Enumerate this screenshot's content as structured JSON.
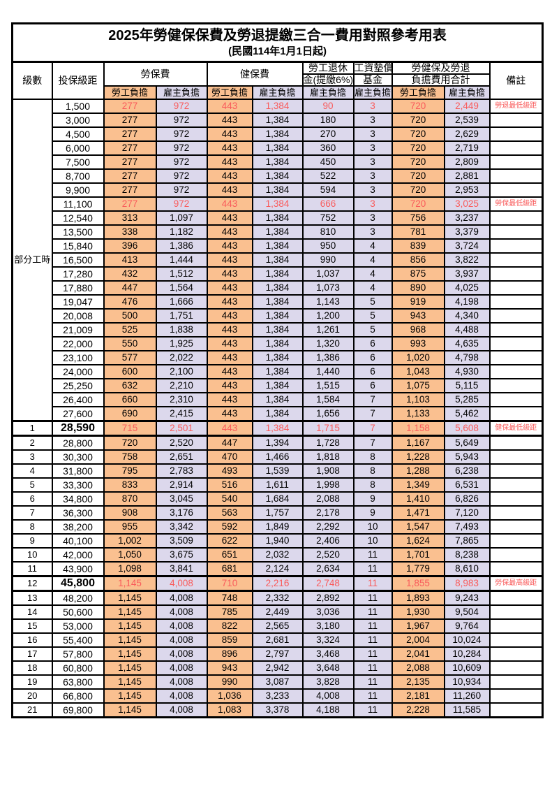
{
  "title": "2025年勞健保保費及勞退提繳三合一費用對照參考用表",
  "subtitle": "(民國114年1月1日起)",
  "colors": {
    "employee_bg": "#FAC090",
    "employer_bg": "#DCD8EC",
    "highlight_text": "#F95B5B"
  },
  "header": {
    "level": "級數",
    "bracket": "投保級距",
    "labor_insurance": "勞保費",
    "health_insurance": "健保費",
    "pension_top": "勞工退休",
    "pension_bottom": "金(提繳6%)",
    "wage_fund_top": "工資墊償",
    "wage_fund_bottom": "基金",
    "total_top": "勞健保及勞退",
    "total_bottom": "負擔費用合計",
    "remark": "備註",
    "employee_burden": "勞工負擔",
    "employer_burden": "雇主負擔"
  },
  "part_time_label": "部分工時",
  "part_time_rowspan": 23,
  "rows": [
    {
      "lv": "",
      "bracket": "1,500",
      "v": [
        "277",
        "972",
        "443",
        "1,384",
        "90",
        "3",
        "720",
        "2,449"
      ],
      "remark": "勞退最低級距",
      "hl": true,
      "thick": false
    },
    {
      "lv": "",
      "bracket": "3,000",
      "v": [
        "277",
        "972",
        "443",
        "1,384",
        "180",
        "3",
        "720",
        "2,539"
      ],
      "remark": "",
      "hl": false,
      "thick": false
    },
    {
      "lv": "",
      "bracket": "4,500",
      "v": [
        "277",
        "972",
        "443",
        "1,384",
        "270",
        "3",
        "720",
        "2,629"
      ],
      "remark": "",
      "hl": false,
      "thick": false
    },
    {
      "lv": "",
      "bracket": "6,000",
      "v": [
        "277",
        "972",
        "443",
        "1,384",
        "360",
        "3",
        "720",
        "2,719"
      ],
      "remark": "",
      "hl": false,
      "thick": false
    },
    {
      "lv": "",
      "bracket": "7,500",
      "v": [
        "277",
        "972",
        "443",
        "1,384",
        "450",
        "3",
        "720",
        "2,809"
      ],
      "remark": "",
      "hl": false,
      "thick": false
    },
    {
      "lv": "",
      "bracket": "8,700",
      "v": [
        "277",
        "972",
        "443",
        "1,384",
        "522",
        "3",
        "720",
        "2,881"
      ],
      "remark": "",
      "hl": false,
      "thick": false
    },
    {
      "lv": "",
      "bracket": "9,900",
      "v": [
        "277",
        "972",
        "443",
        "1,384",
        "594",
        "3",
        "720",
        "2,953"
      ],
      "remark": "",
      "hl": false,
      "thick": false
    },
    {
      "lv": "",
      "bracket": "11,100",
      "v": [
        "277",
        "972",
        "443",
        "1,384",
        "666",
        "3",
        "720",
        "3,025"
      ],
      "remark": "勞保最低級距",
      "hl": true,
      "thick": false
    },
    {
      "lv": "",
      "bracket": "12,540",
      "v": [
        "313",
        "1,097",
        "443",
        "1,384",
        "752",
        "3",
        "756",
        "3,237"
      ],
      "remark": "",
      "hl": false,
      "thick": false
    },
    {
      "lv": "",
      "bracket": "13,500",
      "v": [
        "338",
        "1,182",
        "443",
        "1,384",
        "810",
        "3",
        "781",
        "3,379"
      ],
      "remark": "",
      "hl": false,
      "thick": false
    },
    {
      "lv": "",
      "bracket": "15,840",
      "v": [
        "396",
        "1,386",
        "443",
        "1,384",
        "950",
        "4",
        "839",
        "3,724"
      ],
      "remark": "",
      "hl": false,
      "thick": false
    },
    {
      "lv": "",
      "bracket": "16,500",
      "v": [
        "413",
        "1,444",
        "443",
        "1,384",
        "990",
        "4",
        "856",
        "3,822"
      ],
      "remark": "",
      "hl": false,
      "thick": false
    },
    {
      "lv": "",
      "bracket": "17,280",
      "v": [
        "432",
        "1,512",
        "443",
        "1,384",
        "1,037",
        "4",
        "875",
        "3,937"
      ],
      "remark": "",
      "hl": false,
      "thick": false
    },
    {
      "lv": "",
      "bracket": "17,880",
      "v": [
        "447",
        "1,564",
        "443",
        "1,384",
        "1,073",
        "4",
        "890",
        "4,025"
      ],
      "remark": "",
      "hl": false,
      "thick": false
    },
    {
      "lv": "",
      "bracket": "19,047",
      "v": [
        "476",
        "1,666",
        "443",
        "1,384",
        "1,143",
        "5",
        "919",
        "4,198"
      ],
      "remark": "",
      "hl": false,
      "thick": false
    },
    {
      "lv": "",
      "bracket": "20,008",
      "v": [
        "500",
        "1,751",
        "443",
        "1,384",
        "1,200",
        "5",
        "943",
        "4,340"
      ],
      "remark": "",
      "hl": false,
      "thick": false
    },
    {
      "lv": "",
      "bracket": "21,009",
      "v": [
        "525",
        "1,838",
        "443",
        "1,384",
        "1,261",
        "5",
        "968",
        "4,488"
      ],
      "remark": "",
      "hl": false,
      "thick": false
    },
    {
      "lv": "",
      "bracket": "22,000",
      "v": [
        "550",
        "1,925",
        "443",
        "1,384",
        "1,320",
        "6",
        "993",
        "4,635"
      ],
      "remark": "",
      "hl": false,
      "thick": false
    },
    {
      "lv": "",
      "bracket": "23,100",
      "v": [
        "577",
        "2,022",
        "443",
        "1,384",
        "1,386",
        "6",
        "1,020",
        "4,798"
      ],
      "remark": "",
      "hl": false,
      "thick": false
    },
    {
      "lv": "",
      "bracket": "24,000",
      "v": [
        "600",
        "2,100",
        "443",
        "1,384",
        "1,440",
        "6",
        "1,043",
        "4,930"
      ],
      "remark": "",
      "hl": false,
      "thick": false
    },
    {
      "lv": "",
      "bracket": "25,250",
      "v": [
        "632",
        "2,210",
        "443",
        "1,384",
        "1,515",
        "6",
        "1,075",
        "5,115"
      ],
      "remark": "",
      "hl": false,
      "thick": false
    },
    {
      "lv": "",
      "bracket": "26,400",
      "v": [
        "660",
        "2,310",
        "443",
        "1,384",
        "1,584",
        "7",
        "1,103",
        "5,285"
      ],
      "remark": "",
      "hl": false,
      "thick": false
    },
    {
      "lv": "",
      "bracket": "27,600",
      "v": [
        "690",
        "2,415",
        "443",
        "1,384",
        "1,656",
        "7",
        "1,133",
        "5,462"
      ],
      "remark": "",
      "hl": false,
      "thick": false
    },
    {
      "lv": "1",
      "bracket": "28,590",
      "v": [
        "715",
        "2,501",
        "443",
        "1,384",
        "1,715",
        "7",
        "1,158",
        "5,608"
      ],
      "remark": "健保最低級距",
      "hl": true,
      "thick": true
    },
    {
      "lv": "2",
      "bracket": "28,800",
      "v": [
        "720",
        "2,520",
        "447",
        "1,394",
        "1,728",
        "7",
        "1,167",
        "5,649"
      ],
      "remark": "",
      "hl": false,
      "thick": false
    },
    {
      "lv": "3",
      "bracket": "30,300",
      "v": [
        "758",
        "2,651",
        "470",
        "1,466",
        "1,818",
        "8",
        "1,228",
        "5,943"
      ],
      "remark": "",
      "hl": false,
      "thick": false
    },
    {
      "lv": "4",
      "bracket": "31,800",
      "v": [
        "795",
        "2,783",
        "493",
        "1,539",
        "1,908",
        "8",
        "1,288",
        "6,238"
      ],
      "remark": "",
      "hl": false,
      "thick": false
    },
    {
      "lv": "5",
      "bracket": "33,300",
      "v": [
        "833",
        "2,914",
        "516",
        "1,611",
        "1,998",
        "8",
        "1,349",
        "6,531"
      ],
      "remark": "",
      "hl": false,
      "thick": false
    },
    {
      "lv": "6",
      "bracket": "34,800",
      "v": [
        "870",
        "3,045",
        "540",
        "1,684",
        "2,088",
        "9",
        "1,410",
        "6,826"
      ],
      "remark": "",
      "hl": false,
      "thick": false
    },
    {
      "lv": "7",
      "bracket": "36,300",
      "v": [
        "908",
        "3,176",
        "563",
        "1,757",
        "2,178",
        "9",
        "1,471",
        "7,120"
      ],
      "remark": "",
      "hl": false,
      "thick": false
    },
    {
      "lv": "8",
      "bracket": "38,200",
      "v": [
        "955",
        "3,342",
        "592",
        "1,849",
        "2,292",
        "10",
        "1,547",
        "7,493"
      ],
      "remark": "",
      "hl": false,
      "thick": false
    },
    {
      "lv": "9",
      "bracket": "40,100",
      "v": [
        "1,002",
        "3,509",
        "622",
        "1,940",
        "2,406",
        "10",
        "1,624",
        "7,865"
      ],
      "remark": "",
      "hl": false,
      "thick": false
    },
    {
      "lv": "10",
      "bracket": "42,000",
      "v": [
        "1,050",
        "3,675",
        "651",
        "2,032",
        "2,520",
        "11",
        "1,701",
        "8,238"
      ],
      "remark": "",
      "hl": false,
      "thick": false
    },
    {
      "lv": "11",
      "bracket": "43,900",
      "v": [
        "1,098",
        "3,841",
        "681",
        "2,124",
        "2,634",
        "11",
        "1,779",
        "8,610"
      ],
      "remark": "",
      "hl": false,
      "thick": false
    },
    {
      "lv": "12",
      "bracket": "45,800",
      "v": [
        "1,145",
        "4,008",
        "710",
        "2,216",
        "2,748",
        "11",
        "1,855",
        "8,983"
      ],
      "remark": "勞保最高級距",
      "hl": true,
      "thick": true
    },
    {
      "lv": "13",
      "bracket": "48,200",
      "v": [
        "1,145",
        "4,008",
        "748",
        "2,332",
        "2,892",
        "11",
        "1,893",
        "9,243"
      ],
      "remark": "",
      "hl": false,
      "thick": false
    },
    {
      "lv": "14",
      "bracket": "50,600",
      "v": [
        "1,145",
        "4,008",
        "785",
        "2,449",
        "3,036",
        "11",
        "1,930",
        "9,504"
      ],
      "remark": "",
      "hl": false,
      "thick": false
    },
    {
      "lv": "15",
      "bracket": "53,000",
      "v": [
        "1,145",
        "4,008",
        "822",
        "2,565",
        "3,180",
        "11",
        "1,967",
        "9,764"
      ],
      "remark": "",
      "hl": false,
      "thick": false
    },
    {
      "lv": "16",
      "bracket": "55,400",
      "v": [
        "1,145",
        "4,008",
        "859",
        "2,681",
        "3,324",
        "11",
        "2,004",
        "10,024"
      ],
      "remark": "",
      "hl": false,
      "thick": false
    },
    {
      "lv": "17",
      "bracket": "57,800",
      "v": [
        "1,145",
        "4,008",
        "896",
        "2,797",
        "3,468",
        "11",
        "2,041",
        "10,284"
      ],
      "remark": "",
      "hl": false,
      "thick": false
    },
    {
      "lv": "18",
      "bracket": "60,800",
      "v": [
        "1,145",
        "4,008",
        "943",
        "2,942",
        "3,648",
        "11",
        "2,088",
        "10,609"
      ],
      "remark": "",
      "hl": false,
      "thick": false
    },
    {
      "lv": "19",
      "bracket": "63,800",
      "v": [
        "1,145",
        "4,008",
        "990",
        "3,087",
        "3,828",
        "11",
        "2,135",
        "10,934"
      ],
      "remark": "",
      "hl": false,
      "thick": false
    },
    {
      "lv": "20",
      "bracket": "66,800",
      "v": [
        "1,145",
        "4,008",
        "1,036",
        "3,233",
        "4,008",
        "11",
        "2,181",
        "11,260"
      ],
      "remark": "",
      "hl": false,
      "thick": false
    },
    {
      "lv": "21",
      "bracket": "69,800",
      "v": [
        "1,145",
        "4,008",
        "1,083",
        "3,378",
        "4,188",
        "11",
        "2,228",
        "11,585"
      ],
      "remark": "",
      "hl": false,
      "thick": false
    }
  ]
}
